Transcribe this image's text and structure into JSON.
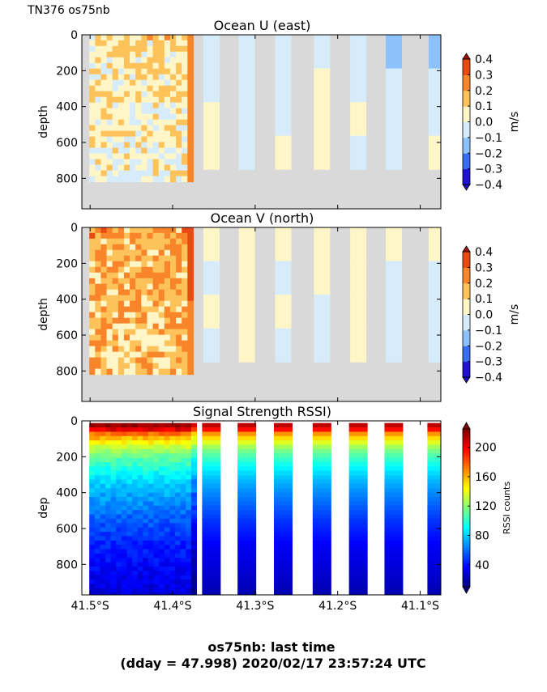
{
  "header": {
    "cruise_label": "TN376 os75nb"
  },
  "footer": {
    "line1": "os75nb: last time",
    "line2": "(dday = 47.998) 2020/02/17 23:57:24 UTC"
  },
  "colors": {
    "no_data": "#d9d9d9",
    "velocity_levels": [
      "#1f12ce",
      "#3a6cf0",
      "#8cc1fb",
      "#d7ecfb",
      "#fff6c8",
      "#fdc35a",
      "#f9852a",
      "#e94a12",
      "#b71a08"
    ],
    "rssi_colormap": "jet"
  },
  "chart_data": [
    {
      "type": "heatmap",
      "title": "Ocean U (east)",
      "xlabel": "",
      "ylabel": "depth",
      "colorbar_label": "m/s",
      "x_ticks": [
        "41.5°S",
        "41.4°S",
        "41.3°S",
        "41.2°S",
        "41.1°S"
      ],
      "x_tick_values": [
        -41.5,
        -41.4,
        -41.3,
        -41.2,
        -41.1
      ],
      "xlim": [
        -41.51,
        -41.075
      ],
      "y_ticks": [
        "0",
        "200",
        "400",
        "600",
        "800"
      ],
      "y_tick_values": [
        0,
        200,
        400,
        600,
        800
      ],
      "ylim": [
        970,
        0
      ],
      "colorbar_ticks": [
        "0.4",
        "0.3",
        "0.2",
        "0.1",
        "0.0",
        "−0.1",
        "−0.2",
        "−0.3",
        "−0.4"
      ],
      "levels": [
        -0.4,
        -0.3,
        -0.2,
        -0.1,
        0.0,
        0.1,
        0.2,
        0.3,
        0.4
      ],
      "dense_segment": {
        "x_range": [
          -41.5,
          -41.375
        ],
        "max_depth": 820,
        "typical_value": 0.1,
        "edge_value": 0.3
      },
      "strips": [
        {
          "x": -41.353,
          "max_depth": 750,
          "values": [
            -0.05,
            -0.05,
            0.05,
            0.05
          ]
        },
        {
          "x": -41.31,
          "max_depth": 750,
          "values": [
            -0.05,
            -0.1,
            -0.05,
            -0.05
          ]
        },
        {
          "x": -41.266,
          "max_depth": 750,
          "values": [
            -0.1,
            -0.05,
            -0.05,
            0.05
          ]
        },
        {
          "x": -41.219,
          "max_depth": 750,
          "values": [
            -0.05,
            0.05,
            0.05,
            0.05
          ]
        },
        {
          "x": -41.175,
          "max_depth": 750,
          "values": [
            -0.05,
            -0.05,
            0.05,
            -0.05
          ]
        },
        {
          "x": -41.132,
          "max_depth": 750,
          "values": [
            -0.15,
            -0.1,
            -0.1,
            -0.1
          ]
        },
        {
          "x": -41.08,
          "max_depth": 750,
          "values": [
            -0.15,
            -0.05,
            -0.05,
            0.05
          ]
        }
      ]
    },
    {
      "type": "heatmap",
      "title": "Ocean V (north)",
      "xlabel": "",
      "ylabel": "depth",
      "colorbar_label": "m/s",
      "x_ticks": [
        "41.5°S",
        "41.4°S",
        "41.3°S",
        "41.2°S",
        "41.1°S"
      ],
      "x_tick_values": [
        -41.5,
        -41.4,
        -41.3,
        -41.2,
        -41.1
      ],
      "xlim": [
        -41.51,
        -41.075
      ],
      "y_ticks": [
        "0",
        "200",
        "400",
        "600",
        "800"
      ],
      "y_tick_values": [
        0,
        200,
        400,
        600,
        800
      ],
      "ylim": [
        970,
        0
      ],
      "colorbar_ticks": [
        "0.4",
        "0.3",
        "0.2",
        "0.1",
        "0.0",
        "−0.1",
        "−0.2",
        "−0.3",
        "−0.4"
      ],
      "levels": [
        -0.4,
        -0.3,
        -0.2,
        -0.1,
        0.0,
        0.1,
        0.2,
        0.3,
        0.4
      ],
      "dense_segment": {
        "x_range": [
          -41.5,
          -41.375
        ],
        "max_depth": 820,
        "typical_value": 0.2,
        "edge_value": 0.35
      },
      "strips": [
        {
          "x": -41.353,
          "max_depth": 750,
          "values": [
            0.05,
            -0.05,
            0.05,
            -0.05
          ]
        },
        {
          "x": -41.31,
          "max_depth": 750,
          "values": [
            0.05,
            0.05,
            0.05,
            0.05
          ]
        },
        {
          "x": -41.266,
          "max_depth": 750,
          "values": [
            0.05,
            -0.05,
            0.05,
            -0.05
          ]
        },
        {
          "x": -41.219,
          "max_depth": 750,
          "values": [
            0.05,
            0.05,
            -0.05,
            -0.05
          ]
        },
        {
          "x": -41.175,
          "max_depth": 750,
          "values": [
            0.05,
            0.05,
            0.05,
            0.05
          ]
        },
        {
          "x": -41.132,
          "max_depth": 750,
          "values": [
            0.05,
            -0.05,
            -0.05,
            -0.05
          ]
        },
        {
          "x": -41.08,
          "max_depth": 750,
          "values": [
            0.05,
            -0.05,
            -0.05,
            -0.05
          ]
        }
      ]
    },
    {
      "type": "heatmap",
      "title": "Signal Strength RSSI)",
      "xlabel": "",
      "ylabel": "dep",
      "colorbar_label": "RSSI counts",
      "x_ticks": [
        "41.5°S",
        "41.4°S",
        "41.3°S",
        "41.2°S",
        "41.1°S"
      ],
      "x_tick_values": [
        -41.5,
        -41.4,
        -41.3,
        -41.2,
        -41.1
      ],
      "xlim": [
        -41.51,
        -41.075
      ],
      "y_ticks": [
        "0",
        "200",
        "400",
        "600",
        "800"
      ],
      "y_tick_values": [
        0,
        200,
        400,
        600,
        800
      ],
      "ylim": [
        970,
        0
      ],
      "colorbar_ticks": [
        "200",
        "160",
        "120",
        "80",
        "40"
      ],
      "colorbar_range": [
        10,
        225
      ],
      "rssi_profile": {
        "depths": [
          20,
          40,
          60,
          100,
          150,
          200,
          260,
          330,
          420,
          550,
          700,
          970
        ],
        "values": [
          220,
          200,
          175,
          150,
          125,
          110,
          95,
          82,
          70,
          55,
          42,
          28
        ]
      },
      "dense_segment": {
        "x_range": [
          -41.5,
          -41.375
        ]
      },
      "strips": [
        {
          "x": -41.353
        },
        {
          "x": -41.31
        },
        {
          "x": -41.266
        },
        {
          "x": -41.219
        },
        {
          "x": -41.175
        },
        {
          "x": -41.132
        },
        {
          "x": -41.08
        }
      ]
    }
  ]
}
